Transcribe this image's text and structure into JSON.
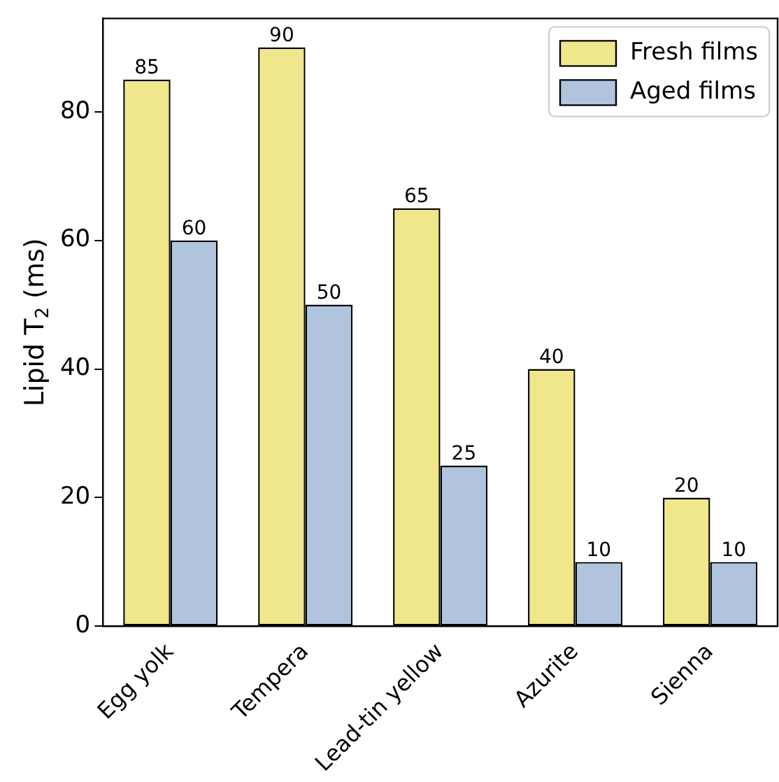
{
  "chart_data": {
    "type": "bar",
    "ylabel": "Lipid T$_{2}$ (ms)",
    "categories": [
      "Egg yolk",
      "Tempera",
      "Lead-tin yellow",
      "Azurite",
      "Sienna"
    ],
    "series": [
      {
        "name": "Fresh films",
        "color": "#f0e68c",
        "values": [
          85,
          90,
          65,
          40,
          20
        ]
      },
      {
        "name": "Aged films",
        "color": "#b0c4de",
        "values": [
          60,
          50,
          25,
          10,
          10
        ]
      }
    ],
    "ylim": [
      0,
      94.5
    ],
    "yticks": [
      0,
      20,
      40,
      60,
      80
    ],
    "grid": false,
    "legend": "top right",
    "data_labels": true
  }
}
